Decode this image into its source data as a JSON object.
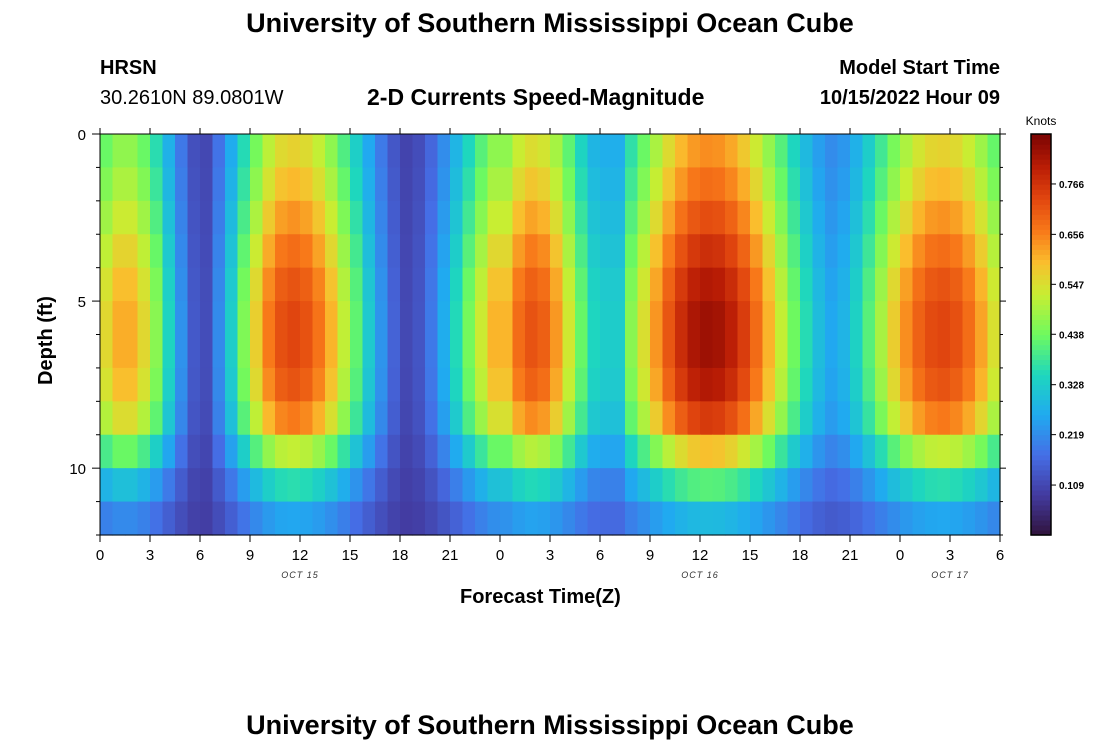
{
  "page": {
    "title_top": "University of Southern Mississippi Ocean Cube",
    "title_bottom": "University of Southern Mississippi Ocean Cube"
  },
  "header": {
    "station": "HRSN",
    "coordinates": "30.2610N  89.0801W",
    "plot_title": "2-D Currents Speed-Magnitude",
    "model_start_label": "Model Start Time",
    "model_start_value": "10/15/2022 Hour 09"
  },
  "chart_data": {
    "type": "heatmap",
    "title": "2-D Currents Speed-Magnitude",
    "xlabel": "Forecast Time(Z)",
    "ylabel": "Depth (ft)",
    "x_hours_from_oct15_00Z": [
      0,
      54
    ],
    "x_tick_labels": [
      "0",
      "3",
      "6",
      "9",
      "12",
      "15",
      "18",
      "21",
      "0",
      "3",
      "6",
      "9",
      "12",
      "15",
      "18",
      "21",
      "0",
      "3",
      "6"
    ],
    "date_labels": [
      {
        "label": "OCT 15",
        "hour": 12
      },
      {
        "label": "OCT 16",
        "hour": 36
      },
      {
        "label": "OCT 17",
        "hour": 51
      }
    ],
    "y_range_ft": [
      0,
      12
    ],
    "y_tick_labels": [
      "0",
      "5",
      "10"
    ],
    "depth_levels_ft": [
      0.5,
      1.5,
      2.5,
      3.5,
      4.5,
      5.5,
      6.5,
      7.5,
      8.5,
      9.5,
      10.5,
      11.5
    ],
    "colorbar": {
      "unit_label": "Knots",
      "min": 0.0,
      "max": 0.875,
      "tick_labels": [
        "0.109",
        "0.219",
        "0.328",
        "0.438",
        "0.547",
        "0.656",
        "0.766"
      ]
    },
    "speed_peaks": [
      {
        "center_hour": 1.5,
        "peak_knots": 0.62
      },
      {
        "center_hour": 11.5,
        "peak_knots": 0.74
      },
      {
        "center_hour": 26.0,
        "peak_knots": 0.72
      },
      {
        "center_hour": 36.5,
        "peak_knots": 0.84
      },
      {
        "center_hour": 50.5,
        "peak_knots": 0.74
      }
    ],
    "speed_minima": [
      {
        "center_hour": 6.0,
        "min_knots": 0.04
      },
      {
        "center_hour": 18.5,
        "min_knots": 0.03
      },
      {
        "center_hour": 30.0,
        "min_knots": 0.25
      },
      {
        "center_hour": 44.0,
        "min_knots": 0.18
      }
    ]
  }
}
